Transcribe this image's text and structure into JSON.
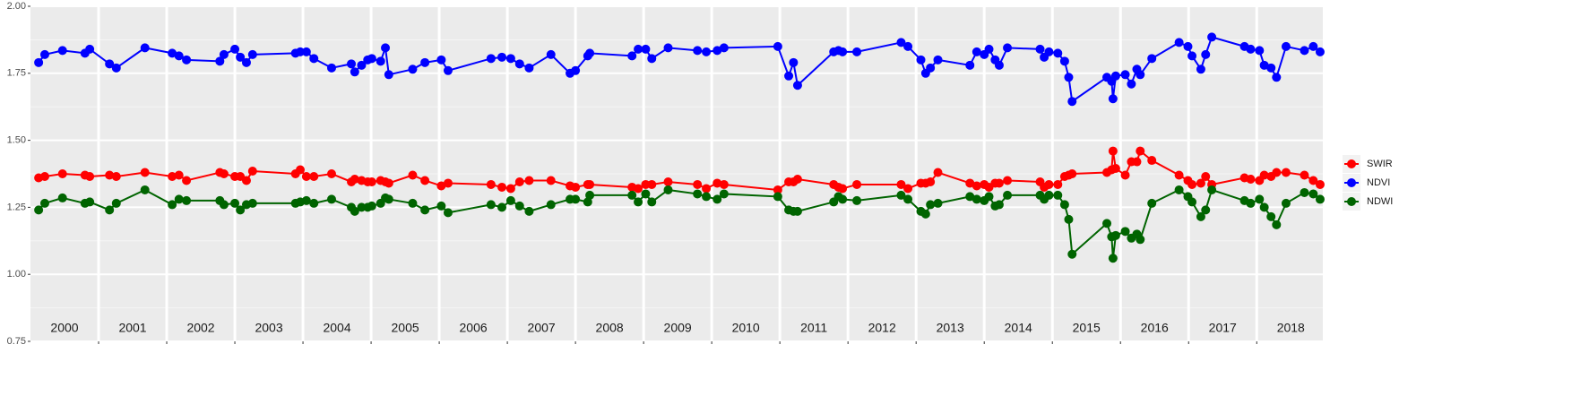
{
  "chart_data": {
    "type": "line",
    "x": [
      2000.12,
      2000.21,
      2000.47,
      2000.8,
      2000.87,
      2001.16,
      2001.26,
      2001.68,
      2002.08,
      2002.18,
      2002.29,
      2002.78,
      2002.84,
      2003.0,
      2003.08,
      2003.17,
      2003.26,
      2003.89,
      2003.96,
      2004.05,
      2004.16,
      2004.42,
      2004.71,
      2004.76,
      2004.86,
      2004.95,
      2005.01,
      2005.14,
      2005.21,
      2005.26,
      2005.61,
      2005.79,
      2006.03,
      2006.13,
      2006.76,
      2006.92,
      2007.05,
      2007.18,
      2007.32,
      2007.64,
      2007.92,
      2008.0,
      2008.18,
      2008.21,
      2008.83,
      2008.92,
      2009.03,
      2009.12,
      2009.36,
      2009.79,
      2009.92,
      2010.08,
      2010.18,
      2010.97,
      2011.13,
      2011.2,
      2011.26,
      2011.79,
      2011.86,
      2011.92,
      2012.13,
      2012.78,
      2012.88,
      2013.07,
      2013.14,
      2013.21,
      2013.32,
      2013.79,
      2013.89,
      2014.0,
      2014.07,
      2014.16,
      2014.22,
      2014.34,
      2014.82,
      2014.88,
      2014.95,
      2015.08,
      2015.18,
      2015.24,
      2015.29,
      2015.8,
      2015.87,
      2015.89,
      2015.93,
      2016.07,
      2016.16,
      2016.24,
      2016.29,
      2016.46,
      2016.86,
      2016.99,
      2017.05,
      2017.18,
      2017.25,
      2017.34,
      2017.82,
      2017.91,
      2018.04,
      2018.11,
      2018.21,
      2018.29,
      2018.43,
      2018.7,
      2018.83,
      2018.93
    ],
    "series": [
      {
        "name": "SWIR",
        "color": "#ff0000",
        "values": [
          1.36,
          1.365,
          1.375,
          1.37,
          1.365,
          1.37,
          1.365,
          1.38,
          1.365,
          1.37,
          1.35,
          1.38,
          1.375,
          1.365,
          1.365,
          1.35,
          1.385,
          1.375,
          1.39,
          1.365,
          1.365,
          1.375,
          1.345,
          1.355,
          1.35,
          1.345,
          1.345,
          1.35,
          1.345,
          1.34,
          1.37,
          1.35,
          1.33,
          1.34,
          1.335,
          1.325,
          1.32,
          1.345,
          1.35,
          1.35,
          1.33,
          1.325,
          1.335,
          1.335,
          1.325,
          1.32,
          1.335,
          1.335,
          1.345,
          1.335,
          1.32,
          1.34,
          1.335,
          1.315,
          1.345,
          1.345,
          1.355,
          1.335,
          1.325,
          1.32,
          1.335,
          1.335,
          1.32,
          1.34,
          1.34,
          1.345,
          1.38,
          1.34,
          1.33,
          1.335,
          1.325,
          1.34,
          1.34,
          1.35,
          1.345,
          1.325,
          1.335,
          1.335,
          1.365,
          1.37,
          1.375,
          1.38,
          1.39,
          1.46,
          1.395,
          1.37,
          1.42,
          1.42,
          1.46,
          1.425,
          1.37,
          1.35,
          1.335,
          1.34,
          1.365,
          1.335,
          1.36,
          1.355,
          1.35,
          1.37,
          1.365,
          1.38,
          1.38,
          1.37,
          1.35,
          1.335
        ]
      },
      {
        "name": "NDVI",
        "color": "#0000ff",
        "values": [
          1.79,
          1.82,
          1.835,
          1.825,
          1.84,
          1.785,
          1.77,
          1.845,
          1.825,
          1.815,
          1.8,
          1.795,
          1.82,
          1.84,
          1.81,
          1.79,
          1.82,
          1.825,
          1.83,
          1.83,
          1.805,
          1.77,
          1.785,
          1.755,
          1.78,
          1.8,
          1.805,
          1.795,
          1.845,
          1.745,
          1.765,
          1.79,
          1.8,
          1.76,
          1.805,
          1.81,
          1.805,
          1.785,
          1.77,
          1.82,
          1.75,
          1.76,
          1.815,
          1.825,
          1.815,
          1.84,
          1.84,
          1.805,
          1.845,
          1.835,
          1.83,
          1.835,
          1.845,
          1.85,
          1.74,
          1.79,
          1.705,
          1.83,
          1.835,
          1.83,
          1.83,
          1.865,
          1.85,
          1.8,
          1.75,
          1.77,
          1.8,
          1.78,
          1.83,
          1.82,
          1.84,
          1.8,
          1.78,
          1.845,
          1.84,
          1.81,
          1.83,
          1.825,
          1.795,
          1.735,
          1.645,
          1.735,
          1.72,
          1.655,
          1.74,
          1.745,
          1.71,
          1.765,
          1.745,
          1.805,
          1.865,
          1.85,
          1.815,
          1.765,
          1.82,
          1.885,
          1.85,
          1.84,
          1.835,
          1.78,
          1.77,
          1.735,
          1.85,
          1.835,
          1.85,
          1.83
        ]
      },
      {
        "name": "NDWI",
        "color": "#006400",
        "values": [
          1.24,
          1.265,
          1.285,
          1.265,
          1.27,
          1.24,
          1.265,
          1.315,
          1.26,
          1.28,
          1.275,
          1.275,
          1.26,
          1.265,
          1.24,
          1.26,
          1.265,
          1.265,
          1.27,
          1.275,
          1.265,
          1.28,
          1.25,
          1.235,
          1.25,
          1.25,
          1.255,
          1.265,
          1.285,
          1.28,
          1.265,
          1.24,
          1.255,
          1.23,
          1.26,
          1.25,
          1.275,
          1.255,
          1.235,
          1.26,
          1.28,
          1.28,
          1.27,
          1.295,
          1.295,
          1.27,
          1.3,
          1.27,
          1.315,
          1.3,
          1.29,
          1.28,
          1.3,
          1.29,
          1.24,
          1.235,
          1.235,
          1.27,
          1.29,
          1.28,
          1.275,
          1.295,
          1.28,
          1.235,
          1.225,
          1.26,
          1.265,
          1.29,
          1.28,
          1.275,
          1.29,
          1.255,
          1.26,
          1.295,
          1.295,
          1.28,
          1.295,
          1.295,
          1.26,
          1.205,
          1.075,
          1.19,
          1.14,
          1.06,
          1.145,
          1.16,
          1.135,
          1.15,
          1.13,
          1.265,
          1.315,
          1.29,
          1.27,
          1.215,
          1.24,
          1.315,
          1.275,
          1.265,
          1.28,
          1.25,
          1.215,
          1.185,
          1.265,
          1.305,
          1.3,
          1.28
        ]
      }
    ],
    "xlim": [
      2000,
      2018.97
    ],
    "xticks": [
      2001,
      2002,
      2003,
      2004,
      2005,
      2006,
      2007,
      2008,
      2009,
      2010,
      2011,
      2012,
      2013,
      2014,
      2015,
      2016,
      2017,
      2018
    ],
    "year_labels": [
      2000,
      2001,
      2002,
      2003,
      2004,
      2005,
      2006,
      2007,
      2008,
      2009,
      2010,
      2011,
      2012,
      2013,
      2014,
      2015,
      2016,
      2017,
      2018
    ],
    "ylim": [
      0.75,
      2.0
    ],
    "yticks": [
      {
        "value": 0.75,
        "label": "0.75"
      },
      {
        "value": 1.0,
        "label": "1.00"
      },
      {
        "value": 1.25,
        "label": "1.25"
      },
      {
        "value": 1.5,
        "label": "1.50"
      },
      {
        "value": 1.75,
        "label": "1.75"
      },
      {
        "value": 2.0,
        "label": "2.00"
      }
    ],
    "grid": true,
    "legend": "right"
  }
}
